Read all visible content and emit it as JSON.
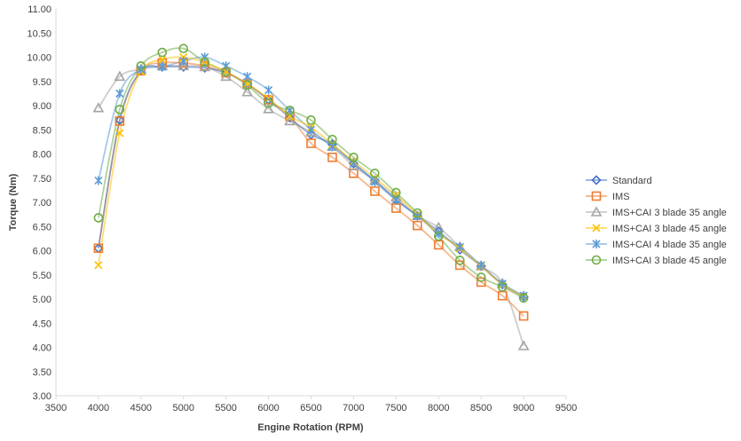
{
  "chart_data": {
    "type": "line",
    "title": "",
    "xlabel": "Engine Rotation (RPM)",
    "ylabel": "Torque (Nm)",
    "xlim": [
      3500,
      9500
    ],
    "ylim": [
      3.0,
      11.0
    ],
    "x_ticks": [
      "3500",
      "4000",
      "4500",
      "5000",
      "5500",
      "6000",
      "6500",
      "7000",
      "7500",
      "8000",
      "8500",
      "9000",
      "9500"
    ],
    "y_ticks": [
      "3.00",
      "3.50",
      "4.00",
      "4.50",
      "5.00",
      "5.50",
      "6.00",
      "6.50",
      "7.00",
      "7.50",
      "8.00",
      "8.50",
      "9.00",
      "9.50",
      "10.00",
      "10.50",
      "11.00"
    ],
    "grid": false,
    "legend_placement": "right",
    "x": [
      4000,
      4250,
      4500,
      4750,
      5000,
      5250,
      5500,
      5750,
      6000,
      6250,
      6500,
      6750,
      7000,
      7250,
      7500,
      7750,
      8000,
      8250,
      8500,
      8750,
      9000
    ],
    "series": [
      {
        "name": "Standard",
        "color": "#4472C4",
        "marker": "diamond",
        "values": [
          6.05,
          8.7,
          9.72,
          9.8,
          9.8,
          9.78,
          9.68,
          9.45,
          9.12,
          8.75,
          8.4,
          8.2,
          7.8,
          7.45,
          7.05,
          6.72,
          6.4,
          6.02,
          5.68,
          5.3,
          5.05
        ]
      },
      {
        "name": "IMS",
        "color": "#ED7D31",
        "marker": "square",
        "values": [
          6.05,
          8.68,
          9.72,
          9.88,
          9.88,
          9.82,
          9.68,
          9.45,
          9.12,
          8.78,
          8.22,
          7.93,
          7.6,
          7.23,
          6.88,
          6.52,
          6.12,
          5.7,
          5.35,
          5.07,
          4.65
        ]
      },
      {
        "name": "IMS+CAI 3 blade 35 angle",
        "color": "#A5A5A5",
        "marker": "triangle",
        "values": [
          8.95,
          9.6,
          9.75,
          9.82,
          9.82,
          9.8,
          9.6,
          9.28,
          8.93,
          8.68,
          8.45,
          8.15,
          7.75,
          7.45,
          7.1,
          6.72,
          6.48,
          6.08,
          5.68,
          5.32,
          4.03
        ]
      },
      {
        "name": "IMS+CAI 3 blade 45 angle",
        "color": "#FFC000",
        "marker": "x",
        "values": [
          5.7,
          8.43,
          9.7,
          9.95,
          10.0,
          9.9,
          9.7,
          9.45,
          9.15,
          8.78,
          8.55,
          8.2,
          7.85,
          7.5,
          7.15,
          6.75,
          6.35,
          6.05,
          5.68,
          5.3,
          5.05
        ]
      },
      {
        "name": "IMS+CAI 4 blade 35 angle",
        "color": "#5B9BD5",
        "marker": "star",
        "values": [
          7.45,
          9.25,
          9.75,
          9.8,
          9.92,
          10.0,
          9.82,
          9.6,
          9.32,
          8.9,
          8.5,
          8.15,
          7.82,
          7.42,
          7.05,
          6.72,
          6.35,
          6.08,
          5.7,
          5.32,
          5.07
        ]
      },
      {
        "name": "IMS+CAI 3 blade 45 angle",
        "color": "#70AD47",
        "marker": "circle",
        "values": [
          6.68,
          8.92,
          9.82,
          10.1,
          10.18,
          9.9,
          9.7,
          9.42,
          9.05,
          8.9,
          8.7,
          8.3,
          7.93,
          7.6,
          7.2,
          6.78,
          6.3,
          5.8,
          5.45,
          5.25,
          5.02
        ]
      }
    ]
  }
}
